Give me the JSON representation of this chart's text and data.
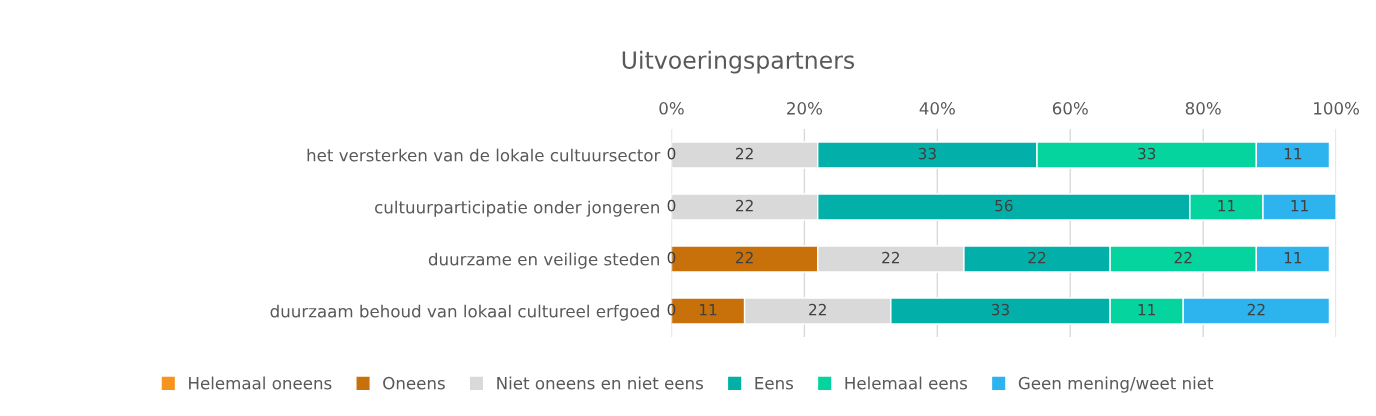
{
  "chart_data": {
    "type": "bar",
    "orientation": "horizontal",
    "stacked": true,
    "title": "Uitvoeringspartners",
    "categories": [
      "het versterken van de lokale cultuursector",
      "cultuurparticipatie onder jongeren",
      "duurzame en veilige steden",
      "duurzaam behoud van lokaal cultureel erfgoed"
    ],
    "series": [
      {
        "name": "Helemaal oneens",
        "color": "#f7941d",
        "values": [
          0,
          0,
          0,
          0
        ]
      },
      {
        "name": "Oneens",
        "color": "#c8700a",
        "values": [
          null,
          null,
          22,
          11
        ]
      },
      {
        "name": "Niet oneens en niet eens",
        "color": "#d9d9d9",
        "values": [
          22,
          22,
          22,
          22
        ]
      },
      {
        "name": "Eens",
        "color": "#03b0a9",
        "values": [
          33,
          56,
          22,
          33
        ]
      },
      {
        "name": "Helemaal eens",
        "color": "#05d49e",
        "values": [
          33,
          11,
          22,
          11
        ]
      },
      {
        "name": "Geen mening/weet niet",
        "color": "#2db4ee",
        "values": [
          11,
          11,
          11,
          22
        ]
      }
    ],
    "xlim": [
      0,
      100
    ],
    "xticks": [
      {
        "value": 0,
        "label": "0%"
      },
      {
        "value": 20,
        "label": "20%"
      },
      {
        "value": 40,
        "label": "40%"
      },
      {
        "value": 60,
        "label": "60%"
      },
      {
        "value": 80,
        "label": "80%"
      },
      {
        "value": 100,
        "label": "100%"
      }
    ],
    "grid": "x",
    "legend": "bottom",
    "data_labels": true
  }
}
